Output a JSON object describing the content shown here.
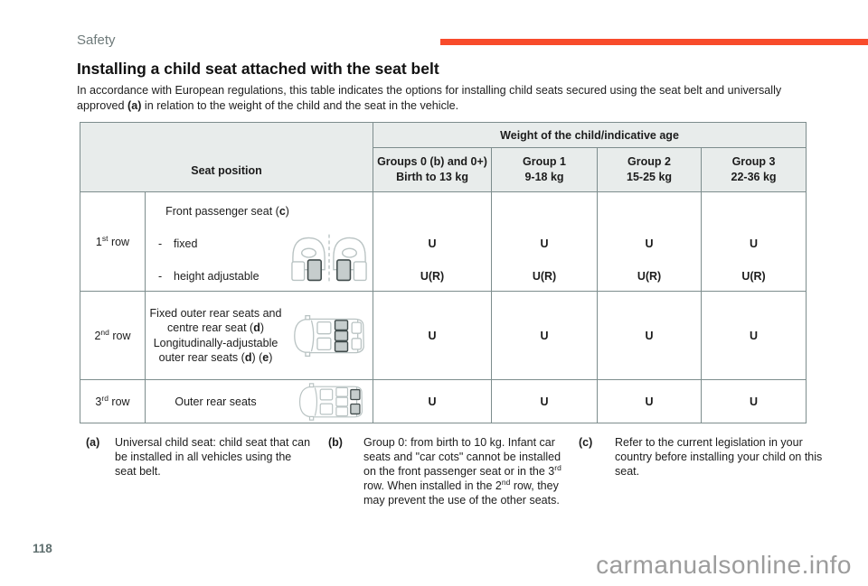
{
  "page": {
    "section_label": "Safety",
    "page_number": "118",
    "watermark": "carmanualsonline.info",
    "accent_color": "#f84b2b"
  },
  "title": "Installing a child seat attached with the seat belt",
  "intro": [
    {
      "t": "In accordance with European regulations, this table indicates the options for installing child seats secured using the seat belt and universally approved "
    },
    {
      "b": "(a)"
    },
    {
      "t": " in relation to the weight of the child and the seat in the vehicle."
    }
  ],
  "table": {
    "seat_position_header": "Seat position",
    "weight_header": [
      {
        "b": "Weight of the child"
      },
      {
        "t": "/indicative age"
      }
    ],
    "group_headers": [
      {
        "line1": "Groups 0 (b) and 0+)",
        "line2": "Birth to 13 kg"
      },
      {
        "line1": "Group 1",
        "line2": "9-18 kg"
      },
      {
        "line1": "Group 2",
        "line2": "15-25 kg"
      },
      {
        "line1": "Group 3",
        "line2": "22-36 kg"
      }
    ],
    "rows": [
      {
        "label": [
          {
            "t": "1"
          },
          {
            "sup": "st"
          },
          {
            "t": " row"
          }
        ],
        "desc_title": [
          {
            "t": "Front passenger seat ("
          },
          {
            "b": "c"
          },
          {
            "t": ")"
          }
        ],
        "items": [
          {
            "dash": "-",
            "label": "fixed"
          },
          {
            "dash": "-",
            "label": "height adjustable"
          }
        ],
        "icon": "front-seats-top-view",
        "values": [
          [
            "U",
            "U(R)"
          ],
          [
            "U",
            "U(R)"
          ],
          [
            "U",
            "U(R)"
          ],
          [
            "U",
            "U(R)"
          ]
        ]
      },
      {
        "label": [
          {
            "t": "2"
          },
          {
            "sup": "nd"
          },
          {
            "t": " row"
          }
        ],
        "desc": [
          {
            "t": "Fixed outer rear seats and\ncentre rear seat ("
          },
          {
            "b": "d"
          },
          {
            "t": ")\nLongitudinally-adjustable\nouter rear seats ("
          },
          {
            "b": "d"
          },
          {
            "t": ") ("
          },
          {
            "b": "e"
          },
          {
            "t": ")"
          }
        ],
        "icon": "car-top-view-second-row-highlighted",
        "values": [
          "U",
          "U",
          "U",
          "U"
        ]
      },
      {
        "label": [
          {
            "t": "3"
          },
          {
            "sup": "rd"
          },
          {
            "t": " row"
          }
        ],
        "desc": [
          {
            "t": "Outer rear seats"
          }
        ],
        "icon": "car-top-view-third-row-highlighted",
        "values": [
          "U",
          "U",
          "U",
          "U"
        ]
      }
    ]
  },
  "footnotes": [
    {
      "marker": "(a)",
      "text": [
        {
          "t": "Universal child seat: child seat that can be installed in all vehicles using the seat belt."
        }
      ]
    },
    {
      "marker": "(b)",
      "text": [
        {
          "t": "Group 0: from birth to 10 kg. Infant car seats and \"car cots\" cannot be installed on the front passenger seat or in the 3"
        },
        {
          "sup": "rd"
        },
        {
          "t": " row. When installed in the 2"
        },
        {
          "sup": "nd"
        },
        {
          "t": " row, they may prevent the use of the other seats."
        }
      ]
    },
    {
      "marker": "(c)",
      "text": [
        {
          "t": "Refer to the current legislation in your country before installing your child on this seat."
        }
      ]
    }
  ]
}
